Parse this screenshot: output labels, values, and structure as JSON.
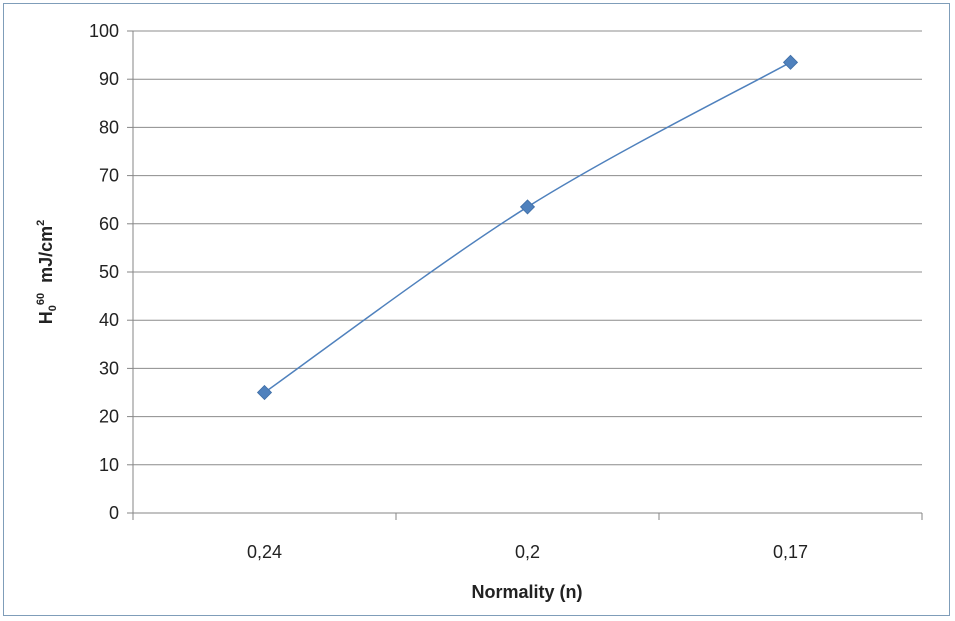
{
  "chart_data": {
    "type": "line",
    "categories": [
      "0,24",
      "0,2",
      "0,17"
    ],
    "series": [
      {
        "values": [
          25,
          63.5,
          93.5
        ],
        "color": "#4f81bd",
        "marker": "diamond",
        "smooth": true
      }
    ],
    "ylim": [
      0,
      100
    ],
    "yticks": [
      "0",
      "10",
      "20",
      "30",
      "40",
      "50",
      "60",
      "70",
      "80",
      "90",
      "100"
    ],
    "xlabel": "Normality (n)",
    "ylabel": {
      "base": "H",
      "sub": "0",
      "sup": "60",
      "unit": "mJ/cm",
      "unit_sup": "2"
    },
    "grid": true,
    "legend": "none",
    "gridline_color": "#8c8c8c",
    "axis_color": "#868686"
  }
}
